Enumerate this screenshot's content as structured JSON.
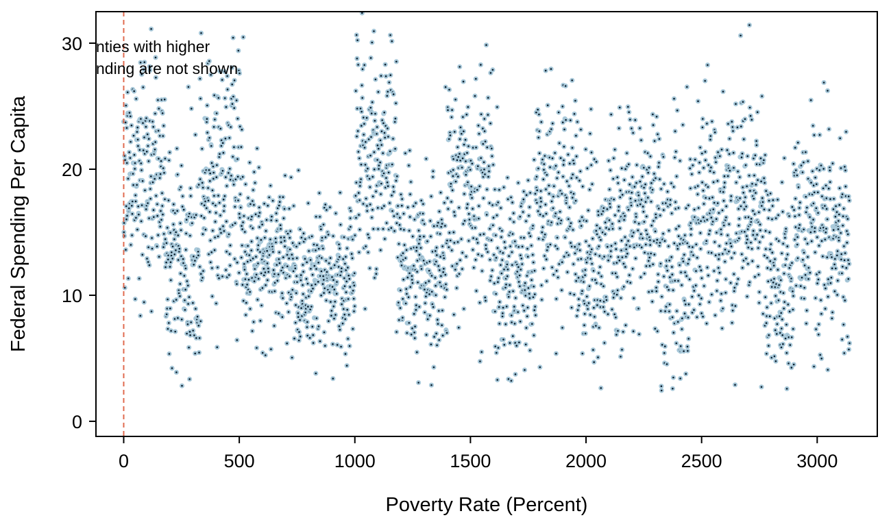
{
  "chart_data": {
    "type": "scatter",
    "title": "",
    "xlabel": "Poverty Rate (Percent)",
    "ylabel": "Federal Spending Per Capita",
    "xlim": [
      -120,
      3260
    ],
    "ylim": [
      -1.2,
      32.5
    ],
    "xticks": [
      0,
      500,
      1000,
      1500,
      2000,
      2500,
      3000
    ],
    "yticks": [
      0,
      10,
      20,
      30
    ],
    "grid": false,
    "legend": "none",
    "reference_line": {
      "x": 0,
      "style": "dashed",
      "color": "#e06a4e"
    },
    "annotation": [
      "nties with higher",
      "nding are not shown"
    ],
    "marker": {
      "fill": "#0b1f2e",
      "ring": "#a9c9da"
    },
    "point_count": 3140,
    "x_range": [
      0,
      3140
    ],
    "y_range": [
      2.3,
      32.4
    ],
    "density_profile": [
      {
        "x": [
          0,
          180
        ],
        "mean": 19.5,
        "sd": 4.6
      },
      {
        "x": [
          180,
          330
        ],
        "mean": 13.0,
        "sd": 4.2
      },
      {
        "x": [
          330,
          520
        ],
        "mean": 19.0,
        "sd": 5.5
      },
      {
        "x": [
          520,
          700
        ],
        "mean": 13.5,
        "sd": 3.2
      },
      {
        "x": [
          700,
          1000
        ],
        "mean": 11.5,
        "sd": 3.0
      },
      {
        "x": [
          1000,
          1180
        ],
        "mean": 21.0,
        "sd": 4.5
      },
      {
        "x": [
          1180,
          1400
        ],
        "mean": 12.5,
        "sd": 3.6
      },
      {
        "x": [
          1400,
          1600
        ],
        "mean": 18.5,
        "sd": 4.2
      },
      {
        "x": [
          1600,
          1780
        ],
        "mean": 11.5,
        "sd": 3.6
      },
      {
        "x": [
          1780,
          1960
        ],
        "mean": 17.0,
        "sd": 4.6
      },
      {
        "x": [
          1960,
          2100
        ],
        "mean": 12.5,
        "sd": 4.2
      },
      {
        "x": [
          2100,
          2320
        ],
        "mean": 16.0,
        "sd": 4.0
      },
      {
        "x": [
          2320,
          2480
        ],
        "mean": 13.5,
        "sd": 5.0
      },
      {
        "x": [
          2480,
          2780
        ],
        "mean": 16.5,
        "sd": 4.5
      },
      {
        "x": [
          2780,
          2900
        ],
        "mean": 11.0,
        "sd": 4.0
      },
      {
        "x": [
          2900,
          3140
        ],
        "mean": 14.5,
        "sd": 4.5
      }
    ]
  }
}
